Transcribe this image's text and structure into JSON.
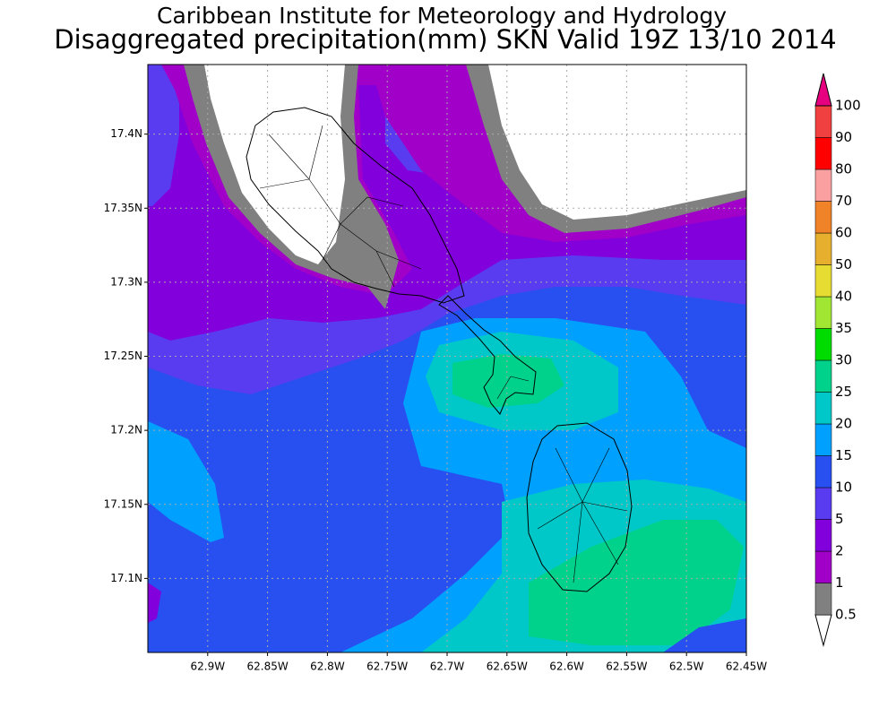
{
  "map": {
    "title": "Caribbean Institute for Meteorology and Hydrology",
    "subtitle": "Disaggregated precipitation(mm) SKN Valid 19Z 13/10 2014",
    "xlim": [
      -62.95,
      -62.45
    ],
    "ylim": [
      17.05,
      17.447
    ],
    "xticks": [
      {
        "value": -62.9,
        "label": "62.9W"
      },
      {
        "value": -62.85,
        "label": "62.85W"
      },
      {
        "value": -62.8,
        "label": "62.8W"
      },
      {
        "value": -62.75,
        "label": "62.75W"
      },
      {
        "value": -62.7,
        "label": "62.7W"
      },
      {
        "value": -62.65,
        "label": "62.65W"
      },
      {
        "value": -62.6,
        "label": "62.6W"
      },
      {
        "value": -62.55,
        "label": "62.55W"
      },
      {
        "value": -62.5,
        "label": "62.5W"
      },
      {
        "value": -62.45,
        "label": "62.45W"
      }
    ],
    "yticks": [
      {
        "value": 17.1,
        "label": "17.1N"
      },
      {
        "value": 17.15,
        "label": "17.15N"
      },
      {
        "value": 17.2,
        "label": "17.2N"
      },
      {
        "value": 17.25,
        "label": "17.25N"
      },
      {
        "value": 17.3,
        "label": "17.3N"
      },
      {
        "value": 17.35,
        "label": "17.35N"
      },
      {
        "value": 17.4,
        "label": "17.4N"
      }
    ],
    "grid": true,
    "colorbar": {
      "levels": [
        0.5,
        1,
        2,
        5,
        10,
        15,
        20,
        25,
        30,
        35,
        40,
        50,
        60,
        70,
        80,
        90,
        100
      ],
      "colors": [
        "#ffffff",
        "#808080",
        "#a000c8",
        "#8200dc",
        "#5a3cf0",
        "#2850f0",
        "#00a0ff",
        "#00c8c8",
        "#00d28c",
        "#00dc00",
        "#a0e632",
        "#e6dc32",
        "#e6af2d",
        "#f08228",
        "#faa0a0",
        "#ff0000",
        "#f04040",
        "#e6007f"
      ]
    }
  }
}
